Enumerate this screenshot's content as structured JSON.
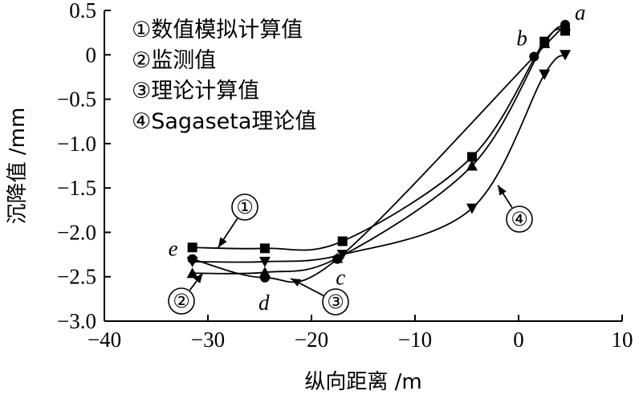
{
  "chart_data": {
    "type": "line",
    "xlabel": "纵向距离 /m",
    "ylabel": "沉降值 /mm",
    "xlim": [
      -40,
      10
    ],
    "ylim": [
      -3.0,
      0.5
    ],
    "xticks": [
      -40,
      -30,
      -20,
      -10,
      0,
      10
    ],
    "xtick_labels": [
      "−40",
      "−30",
      "−20",
      "−10",
      "0",
      "10"
    ],
    "yticks": [
      0.5,
      0,
      -0.5,
      -1.0,
      -1.5,
      -2.0,
      -2.5,
      -3.0
    ],
    "ytick_labels": [
      "0.5",
      "0",
      "−0.5",
      "−1.0",
      "−1.5",
      "−2.0",
      "−2.5",
      "−3.0"
    ],
    "legend_placement": "top-left",
    "legend": [
      "①数值模拟计算值",
      "②监测值",
      "③理论计算值",
      "④Sagaseta理论值"
    ],
    "series": [
      {
        "name": "①数值模拟计算值",
        "marker": "square",
        "points": [
          [
            -31.5,
            -2.17
          ],
          [
            -24.5,
            -2.18
          ],
          [
            -17.0,
            -2.1
          ],
          [
            -4.5,
            -1.15
          ],
          [
            2.5,
            0.15
          ],
          [
            4.5,
            0.27
          ]
        ]
      },
      {
        "name": "②监测值",
        "marker": "triangle-up",
        "points": [
          [
            -31.5,
            -2.46
          ],
          [
            -24.5,
            -2.45
          ],
          [
            -17.5,
            -2.29
          ],
          [
            -4.5,
            -1.25
          ],
          [
            2.5,
            0.13
          ],
          [
            4.5,
            0.33
          ]
        ]
      },
      {
        "name": "③理论计算值",
        "marker": "circle",
        "points": [
          [
            -31.5,
            -2.3
          ],
          [
            -24.5,
            -2.51
          ],
          [
            -17.5,
            -2.3
          ],
          [
            1.5,
            -0.02
          ],
          [
            4.5,
            0.34
          ]
        ]
      },
      {
        "name": "④Sagaseta理论值",
        "marker": "triangle-down",
        "points": [
          [
            -31.5,
            -2.33
          ],
          [
            -24.5,
            -2.33
          ],
          [
            -17.0,
            -2.25
          ],
          [
            -4.5,
            -1.73
          ],
          [
            2.5,
            -0.22
          ],
          [
            4.5,
            0.0
          ]
        ]
      }
    ],
    "point_labels": [
      {
        "text": "a",
        "x": 4.5,
        "y": 0.34
      },
      {
        "text": "b",
        "x": 1.5,
        "y": -0.02
      },
      {
        "text": "c",
        "x": -17.5,
        "y": -2.3
      },
      {
        "text": "d",
        "x": -24.5,
        "y": -2.51
      },
      {
        "text": "e",
        "x": -31.5,
        "y": -2.3
      }
    ],
    "callouts": [
      {
        "label": "①",
        "target_x": -29.0,
        "target_y": -2.17
      },
      {
        "label": "②",
        "target_x": -30.5,
        "target_y": -2.46
      },
      {
        "label": "③",
        "target_x": -22.0,
        "target_y": -2.52
      },
      {
        "label": "④",
        "target_x": -2.0,
        "target_y": -1.47
      }
    ]
  }
}
